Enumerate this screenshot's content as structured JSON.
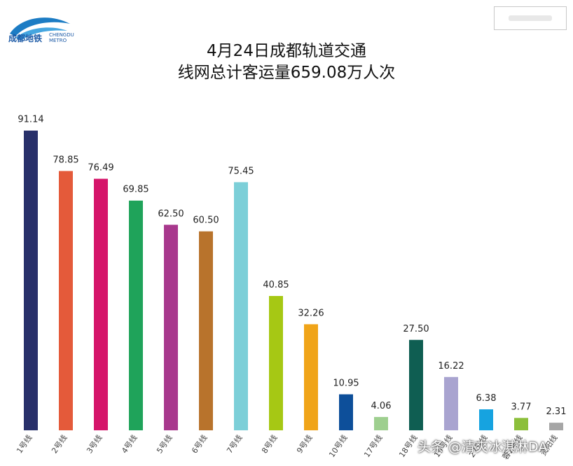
{
  "header": {
    "logo_text": "成都地铁",
    "logo_sub": "CHENGDU METRO"
  },
  "chart_data": {
    "type": "bar",
    "title": "4月24日成都轨道交通",
    "subtitle": "线网总计客运量659.08万人次",
    "xlabel": "",
    "ylabel": "",
    "ylim": [
      0,
      100
    ],
    "grid": false,
    "categories": [
      "1号线",
      "2号线",
      "3号线",
      "4号线",
      "5号线",
      "6号线",
      "7号线",
      "8号线",
      "9号线",
      "10号线",
      "17号线",
      "18号线",
      "19号线",
      "27号线",
      "蓉2号线",
      "资阳线"
    ],
    "values": [
      91.14,
      78.85,
      76.49,
      69.85,
      62.5,
      60.5,
      75.45,
      40.85,
      32.26,
      10.95,
      4.06,
      27.5,
      16.22,
      6.38,
      3.77,
      2.31
    ],
    "labels": [
      "91.14",
      "78.85",
      "76.49",
      "69.85",
      "62.50",
      "60.50",
      "75.45",
      "40.85",
      "32.26",
      "10.95",
      "4.06",
      "27.50",
      "16.22",
      "6.38",
      "3.77",
      "2.31"
    ],
    "colors": [
      "#28306a",
      "#e45a3a",
      "#d5156a",
      "#1fa35a",
      "#a8388d",
      "#b8732c",
      "#7ccfd8",
      "#a6c814",
      "#f0a419",
      "#0d4f9a",
      "#9ecf8f",
      "#0f5e52",
      "#a9a4d0",
      "#16a3e0",
      "#8cbf3b",
      "#a6a6a6"
    ]
  },
  "watermark": "头条 @清爽冰淇淋DA"
}
